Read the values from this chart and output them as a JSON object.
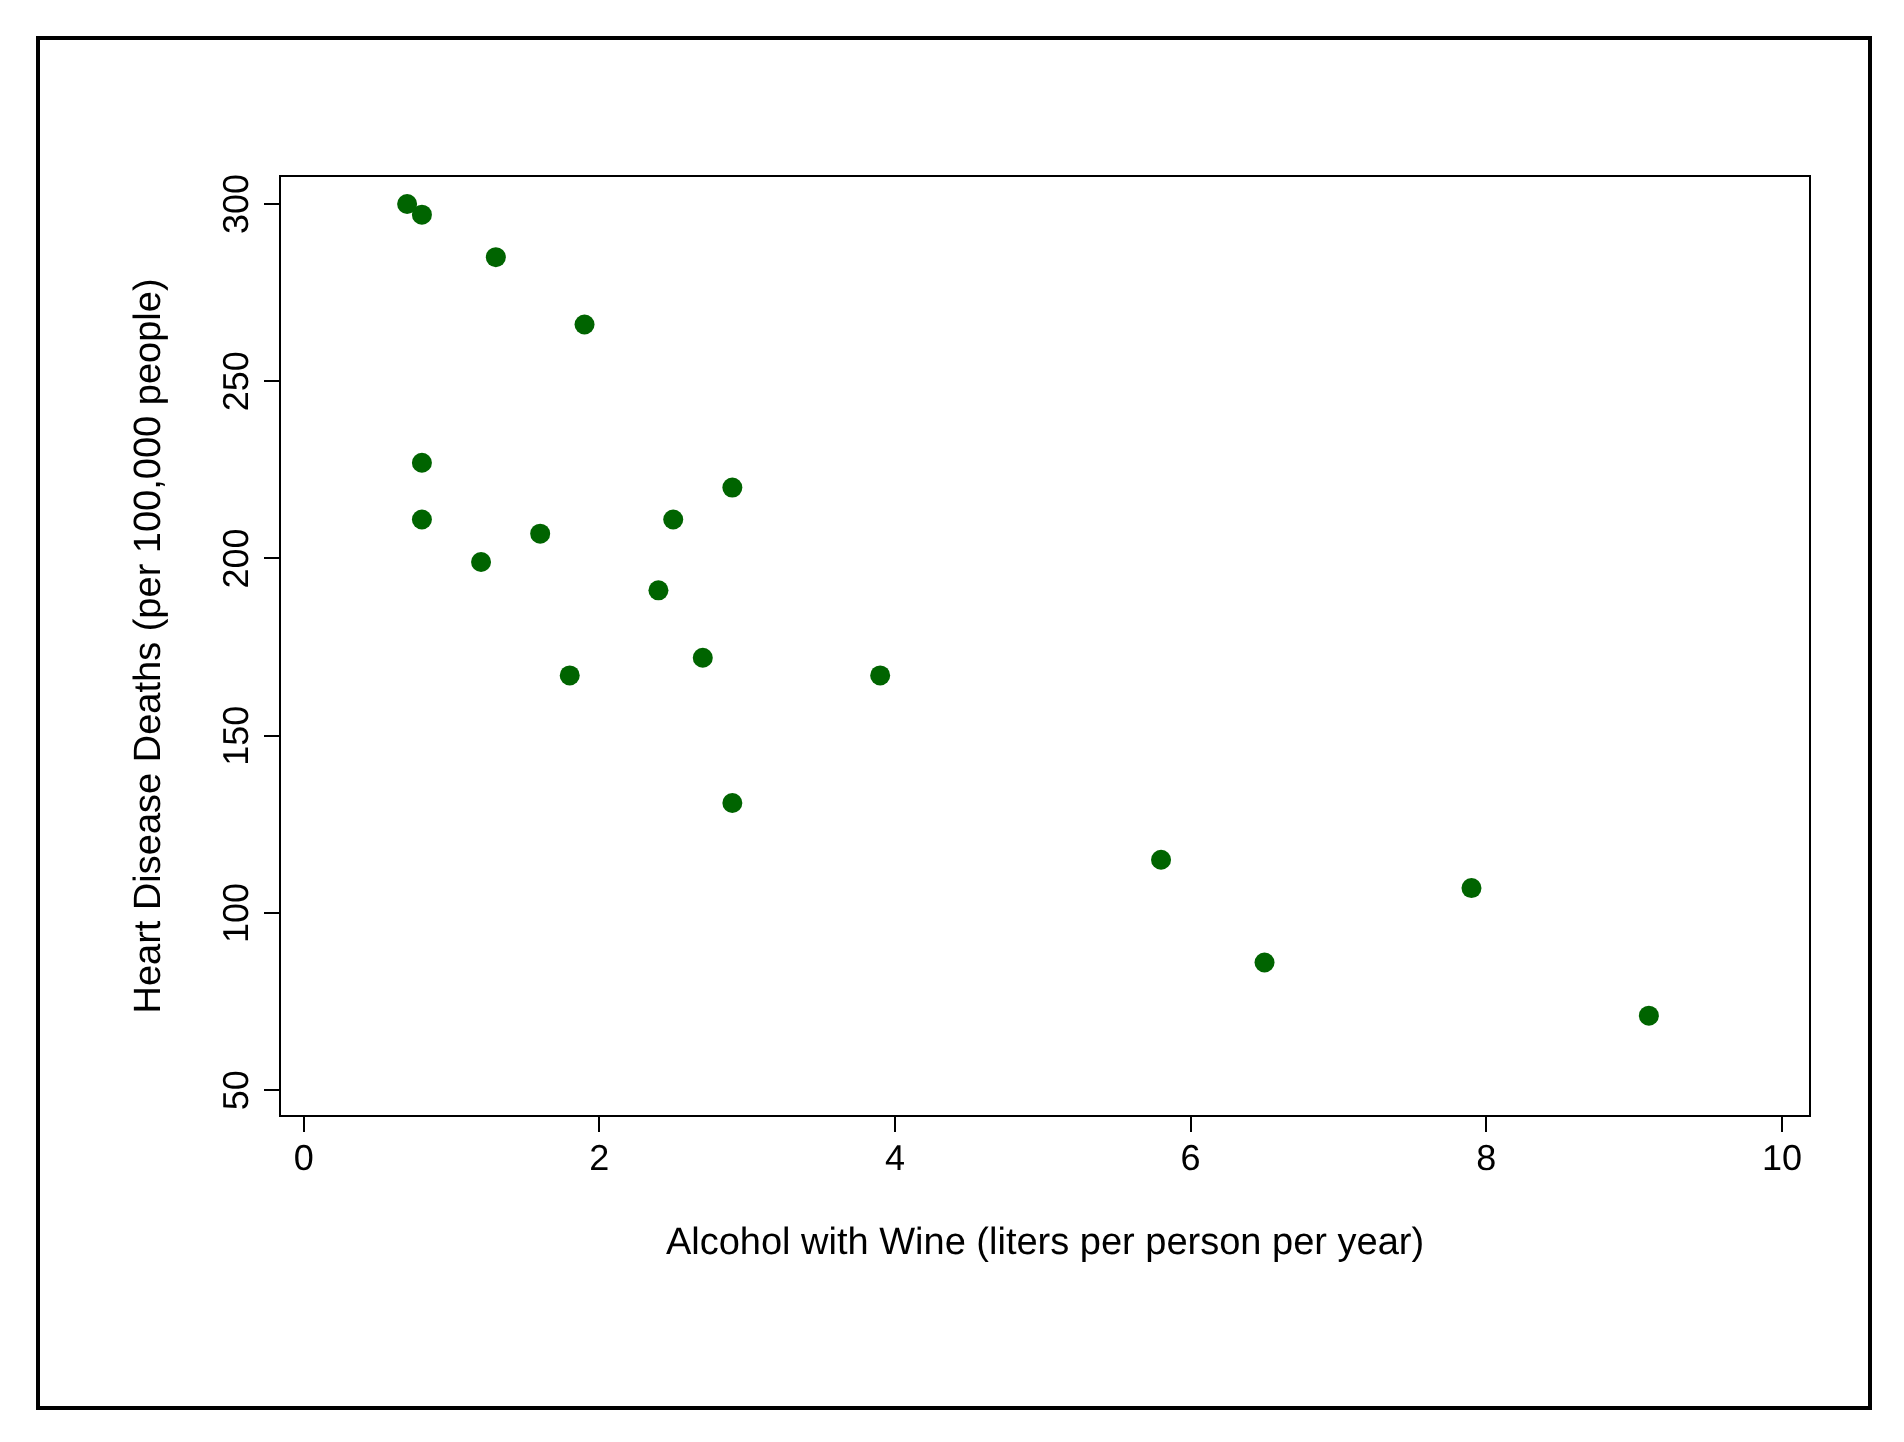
{
  "chart_data": {
    "type": "scatter",
    "xlabel": "Alcohol with Wine (liters per person per year)",
    "ylabel": "Heart Disease Deaths (per 100,000 people)",
    "x": [
      2.5,
      3.9,
      2.9,
      2.4,
      2.9,
      0.8,
      9.1,
      0.8,
      0.7,
      7.9,
      1.8,
      1.9,
      0.8,
      6.5,
      1.6,
      5.8,
      1.3,
      1.2,
      2.7
    ],
    "series": [
      {
        "color": "#006400",
        "values": [
          211,
          167,
          131,
          191,
          220,
          297,
          71,
          211,
          300,
          107,
          167,
          266,
          227,
          86,
          207,
          115,
          285,
          199,
          172
        ]
      }
    ],
    "xlim": [
      -0.16,
      10.19
    ],
    "ylim": [
      42.7,
      307.9
    ],
    "xticks": [
      0,
      2,
      4,
      6,
      8,
      10
    ],
    "yticks": [
      50,
      100,
      150,
      200,
      250,
      300
    ],
    "marker": "circle",
    "grid": false,
    "legend": false
  }
}
